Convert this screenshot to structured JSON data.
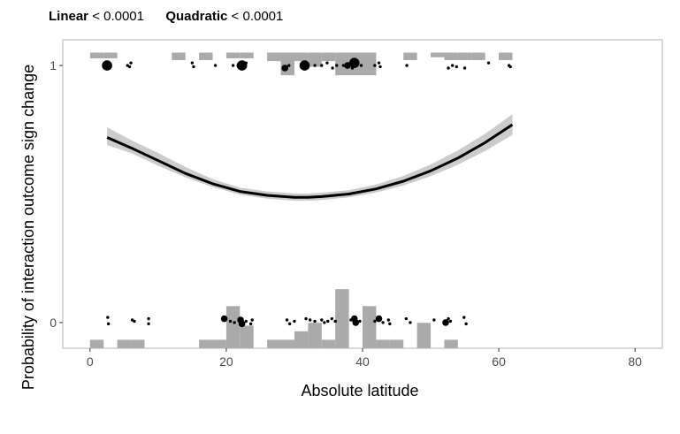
{
  "header": {
    "linear_label": "Linear",
    "linear_value": "< 0.0001",
    "quadratic_label": "Quadratic",
    "quadratic_value": "< 0.0001"
  },
  "chart_data": {
    "type": "scatter",
    "title": "",
    "xlabel": "Absolute latitude",
    "ylabel": "Probability of interaction outcome sign change",
    "xlim": [
      -4,
      84
    ],
    "ylim": [
      -0.1,
      1.1
    ],
    "x_ticks": [
      0,
      20,
      40,
      60,
      80
    ],
    "y_ticks": [
      0,
      1
    ],
    "grid": false,
    "legend": "none",
    "colors": {
      "curve": "#000000",
      "ribbon": "#cccccc",
      "histogram": "#aaaaaa",
      "points": "#000000",
      "frame": "#b3b3b3"
    },
    "fit_curve": {
      "x": [
        2.5,
        6,
        10,
        14,
        18,
        22,
        26,
        30,
        32,
        34,
        38,
        42,
        46,
        50,
        54,
        58,
        62
      ],
      "y": [
        0.72,
        0.68,
        0.63,
        0.58,
        0.54,
        0.51,
        0.495,
        0.487,
        0.487,
        0.49,
        0.5,
        0.52,
        0.55,
        0.59,
        0.64,
        0.7,
        0.77
      ],
      "lower": [
        0.69,
        0.66,
        0.61,
        0.565,
        0.527,
        0.498,
        0.482,
        0.474,
        0.474,
        0.477,
        0.487,
        0.506,
        0.533,
        0.569,
        0.614,
        0.667,
        0.73
      ],
      "upper": [
        0.76,
        0.71,
        0.66,
        0.605,
        0.558,
        0.525,
        0.51,
        0.502,
        0.502,
        0.505,
        0.515,
        0.537,
        0.57,
        0.615,
        0.67,
        0.735,
        0.81
      ]
    },
    "histogram_top": {
      "bin_width": 2,
      "bins": [
        {
          "x0": 0,
          "fraction": 0.022
        },
        {
          "x0": 2,
          "fraction": 0.022
        },
        {
          "x0": 12,
          "fraction": 0.029
        },
        {
          "x0": 16,
          "fraction": 0.029
        },
        {
          "x0": 20,
          "fraction": 0.022
        },
        {
          "x0": 22,
          "fraction": 0.022
        },
        {
          "x0": 24,
          "fraction": 0.0
        },
        {
          "x0": 26,
          "fraction": 0.033
        },
        {
          "x0": 28,
          "fraction": 0.088
        },
        {
          "x0": 30,
          "fraction": 0.033
        },
        {
          "x0": 32,
          "fraction": 0.055
        },
        {
          "x0": 34,
          "fraction": 0.033
        },
        {
          "x0": 36,
          "fraction": 0.088
        },
        {
          "x0": 38,
          "fraction": 0.088
        },
        {
          "x0": 40,
          "fraction": 0.088
        },
        {
          "x0": 46,
          "fraction": 0.029
        },
        {
          "x0": 50,
          "fraction": 0.018
        },
        {
          "x0": 52,
          "fraction": 0.029
        },
        {
          "x0": 54,
          "fraction": 0.029
        },
        {
          "x0": 56,
          "fraction": 0.029
        },
        {
          "x0": 60,
          "fraction": 0.029
        }
      ]
    },
    "histogram_bottom": {
      "bin_width": 2,
      "bins": [
        {
          "x0": 0,
          "fraction": 0.033
        },
        {
          "x0": 4,
          "fraction": 0.033
        },
        {
          "x0": 6,
          "fraction": 0.033
        },
        {
          "x0": 16,
          "fraction": 0.033
        },
        {
          "x0": 18,
          "fraction": 0.033
        },
        {
          "x0": 20,
          "fraction": 0.164
        },
        {
          "x0": 22,
          "fraction": 0.088
        },
        {
          "x0": 26,
          "fraction": 0.033
        },
        {
          "x0": 28,
          "fraction": 0.033
        },
        {
          "x0": 30,
          "fraction": 0.066
        },
        {
          "x0": 32,
          "fraction": 0.099
        },
        {
          "x0": 34,
          "fraction": 0.033
        },
        {
          "x0": 36,
          "fraction": 0.23
        },
        {
          "x0": 40,
          "fraction": 0.164
        },
        {
          "x0": 42,
          "fraction": 0.033
        },
        {
          "x0": 44,
          "fraction": 0.033
        },
        {
          "x0": 48,
          "fraction": 0.099
        },
        {
          "x0": 52,
          "fraction": 0.033
        }
      ]
    },
    "points_top": [
      {
        "x": 2.5,
        "y": 1.0,
        "size": 3
      },
      {
        "x": 2.7,
        "y": 0.99,
        "size": 1
      },
      {
        "x": 5.5,
        "y": 1.0,
        "size": 1
      },
      {
        "x": 6.0,
        "y": 1.01,
        "size": 1
      },
      {
        "x": 5.8,
        "y": 0.995,
        "size": 1
      },
      {
        "x": 15.0,
        "y": 1.01,
        "size": 1
      },
      {
        "x": 15.2,
        "y": 0.995,
        "size": 1
      },
      {
        "x": 18.4,
        "y": 1.0,
        "size": 1
      },
      {
        "x": 21.0,
        "y": 1.0,
        "size": 1
      },
      {
        "x": 22.0,
        "y": 1.0,
        "size": 2
      },
      {
        "x": 22.3,
        "y": 1.0,
        "size": 3
      },
      {
        "x": 22.9,
        "y": 1.01,
        "size": 1
      },
      {
        "x": 28.6,
        "y": 0.99,
        "size": 2
      },
      {
        "x": 29.2,
        "y": 1.0,
        "size": 1
      },
      {
        "x": 31.5,
        "y": 1.0,
        "size": 3
      },
      {
        "x": 33.0,
        "y": 1.0,
        "size": 1
      },
      {
        "x": 34.0,
        "y": 1.0,
        "size": 1
      },
      {
        "x": 34.8,
        "y": 1.01,
        "size": 1
      },
      {
        "x": 35.6,
        "y": 0.99,
        "size": 1
      },
      {
        "x": 36.2,
        "y": 1.0,
        "size": 1
      },
      {
        "x": 37.2,
        "y": 1.0,
        "size": 1
      },
      {
        "x": 37.8,
        "y": 1.0,
        "size": 2
      },
      {
        "x": 38.8,
        "y": 1.01,
        "size": 3
      },
      {
        "x": 38.5,
        "y": 0.99,
        "size": 1
      },
      {
        "x": 39.8,
        "y": 1.0,
        "size": 1
      },
      {
        "x": 41.8,
        "y": 1.0,
        "size": 1
      },
      {
        "x": 42.4,
        "y": 1.01,
        "size": 1
      },
      {
        "x": 42.6,
        "y": 0.995,
        "size": 1
      },
      {
        "x": 46.5,
        "y": 1.0,
        "size": 1
      },
      {
        "x": 52.6,
        "y": 0.99,
        "size": 1
      },
      {
        "x": 53.2,
        "y": 1.0,
        "size": 1
      },
      {
        "x": 53.8,
        "y": 0.995,
        "size": 1
      },
      {
        "x": 55.0,
        "y": 0.99,
        "size": 1
      },
      {
        "x": 58.5,
        "y": 1.01,
        "size": 1
      },
      {
        "x": 61.5,
        "y": 1.0,
        "size": 1
      },
      {
        "x": 61.7,
        "y": 0.995,
        "size": 1
      }
    ],
    "points_bottom": [
      {
        "x": 2.6,
        "y": 0.02,
        "size": 1
      },
      {
        "x": 2.7,
        "y": -0.005,
        "size": 1
      },
      {
        "x": 6.2,
        "y": 0.01,
        "size": 1
      },
      {
        "x": 6.5,
        "y": 0.005,
        "size": 1
      },
      {
        "x": 8.6,
        "y": 0.015,
        "size": 1
      },
      {
        "x": 8.6,
        "y": -0.005,
        "size": 1
      },
      {
        "x": 19.7,
        "y": 0.015,
        "size": 2
      },
      {
        "x": 20.6,
        "y": 0.005,
        "size": 1
      },
      {
        "x": 21.2,
        "y": 0.0,
        "size": 1
      },
      {
        "x": 22.1,
        "y": 0.01,
        "size": 2
      },
      {
        "x": 22.3,
        "y": -0.005,
        "size": 2
      },
      {
        "x": 22.9,
        "y": 0.005,
        "size": 1
      },
      {
        "x": 23.8,
        "y": 0.01,
        "size": 1
      },
      {
        "x": 23.6,
        "y": -0.005,
        "size": 1
      },
      {
        "x": 28.9,
        "y": 0.01,
        "size": 1
      },
      {
        "x": 29.3,
        "y": -0.005,
        "size": 1
      },
      {
        "x": 30.0,
        "y": 0.005,
        "size": 1
      },
      {
        "x": 31.7,
        "y": 0.015,
        "size": 1
      },
      {
        "x": 32.3,
        "y": 0.01,
        "size": 1
      },
      {
        "x": 33.0,
        "y": 0.005,
        "size": 1
      },
      {
        "x": 34.0,
        "y": 0.01,
        "size": 1
      },
      {
        "x": 34.4,
        "y": 0.0,
        "size": 1
      },
      {
        "x": 34.9,
        "y": 0.005,
        "size": 1
      },
      {
        "x": 35.5,
        "y": 0.015,
        "size": 1
      },
      {
        "x": 36.0,
        "y": 0.005,
        "size": 1
      },
      {
        "x": 38.3,
        "y": 0.01,
        "size": 1
      },
      {
        "x": 38.8,
        "y": 0.015,
        "size": 2
      },
      {
        "x": 39.0,
        "y": 0.0,
        "size": 2
      },
      {
        "x": 39.6,
        "y": 0.005,
        "size": 1
      },
      {
        "x": 41.8,
        "y": 0.005,
        "size": 1
      },
      {
        "x": 42.4,
        "y": 0.015,
        "size": 2
      },
      {
        "x": 43.0,
        "y": 0.0,
        "size": 1
      },
      {
        "x": 43.8,
        "y": 0.01,
        "size": 1
      },
      {
        "x": 44.0,
        "y": -0.005,
        "size": 1
      },
      {
        "x": 46.4,
        "y": 0.015,
        "size": 1
      },
      {
        "x": 47.0,
        "y": 0.0,
        "size": 1
      },
      {
        "x": 50.5,
        "y": 0.01,
        "size": 1
      },
      {
        "x": 52.2,
        "y": 0.0,
        "size": 2
      },
      {
        "x": 52.6,
        "y": 0.015,
        "size": 1
      },
      {
        "x": 52.9,
        "y": 0.005,
        "size": 1
      },
      {
        "x": 54.9,
        "y": 0.02,
        "size": 1
      },
      {
        "x": 55.2,
        "y": -0.005,
        "size": 1
      }
    ]
  }
}
